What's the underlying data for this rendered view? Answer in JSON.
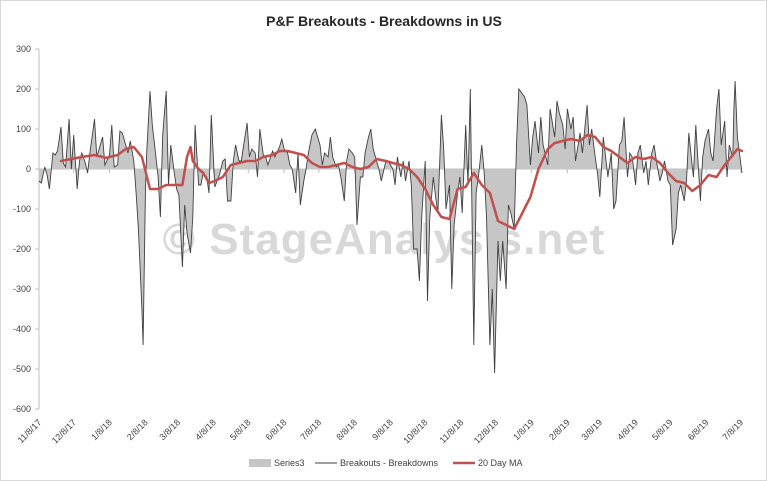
{
  "chart_data": {
    "type": "area",
    "title": "P&F Breakouts - Breakdowns in US",
    "watermark": "© StageAnalysis.net",
    "ylim": [
      -600,
      300
    ],
    "yticks": [
      300,
      200,
      100,
      0,
      -100,
      -200,
      -300,
      -400,
      -500,
      -600
    ],
    "xlim": [
      "2017-11-08",
      "2019-07-09"
    ],
    "xticks": [
      "11/8/17",
      "12/8/17",
      "1/8/18",
      "2/8/18",
      "3/8/18",
      "4/8/18",
      "5/8/18",
      "6/8/18",
      "7/8/18",
      "8/8/18",
      "9/8/18",
      "10/8/18",
      "11/8/18",
      "12/8/18",
      "1/8/19",
      "2/8/19",
      "3/8/19",
      "4/8/19",
      "5/8/19",
      "6/8/19",
      "7/8/19"
    ],
    "grid": false,
    "legend_position": "bottom",
    "series": [
      {
        "name": "Series3",
        "kind": "area",
        "color": "#c6c6c6"
      },
      {
        "name": "Breakouts - Breakdowns",
        "kind": "line",
        "color": "#404040"
      },
      {
        "name": "20 Day MA",
        "kind": "line",
        "color": "#c0504d"
      }
    ],
    "breakouts_minus_breakdowns": [
      [
        "2017-11-08",
        -30
      ],
      [
        "2017-11-10",
        -35
      ],
      [
        "2017-11-13",
        5
      ],
      [
        "2017-11-15",
        -15
      ],
      [
        "2017-11-17",
        -50
      ],
      [
        "2017-11-20",
        40
      ],
      [
        "2017-11-22",
        35
      ],
      [
        "2017-11-24",
        45
      ],
      [
        "2017-11-27",
        105
      ],
      [
        "2017-11-29",
        15
      ],
      [
        "2017-12-01",
        5
      ],
      [
        "2017-12-04",
        125
      ],
      [
        "2017-12-06",
        0
      ],
      [
        "2017-12-08",
        85
      ],
      [
        "2017-12-11",
        -50
      ],
      [
        "2017-12-13",
        20
      ],
      [
        "2017-12-15",
        40
      ],
      [
        "2017-12-18",
        15
      ],
      [
        "2017-12-20",
        -10
      ],
      [
        "2017-12-22",
        40
      ],
      [
        "2017-12-26",
        125
      ],
      [
        "2017-12-28",
        30
      ],
      [
        "2018-01-02",
        80
      ],
      [
        "2018-01-04",
        10
      ],
      [
        "2018-01-08",
        35
      ],
      [
        "2018-01-10",
        110
      ],
      [
        "2018-01-12",
        5
      ],
      [
        "2018-01-15",
        10
      ],
      [
        "2018-01-17",
        95
      ],
      [
        "2018-01-19",
        90
      ],
      [
        "2018-01-22",
        60
      ],
      [
        "2018-01-24",
        40
      ],
      [
        "2018-01-26",
        70
      ],
      [
        "2018-01-29",
        20
      ],
      [
        "2018-01-31",
        -60
      ],
      [
        "2018-02-02",
        -150
      ],
      [
        "2018-02-05",
        -350
      ],
      [
        "2018-02-06",
        -440
      ],
      [
        "2018-02-08",
        -60
      ],
      [
        "2018-02-09",
        30
      ],
      [
        "2018-02-12",
        195
      ],
      [
        "2018-02-14",
        110
      ],
      [
        "2018-02-16",
        60
      ],
      [
        "2018-02-19",
        -20
      ],
      [
        "2018-02-21",
        -120
      ],
      [
        "2018-02-23",
        85
      ],
      [
        "2018-02-26",
        195
      ],
      [
        "2018-02-28",
        -40
      ],
      [
        "2018-03-02",
        60
      ],
      [
        "2018-03-05",
        -10
      ],
      [
        "2018-03-07",
        -50
      ],
      [
        "2018-03-09",
        -65
      ],
      [
        "2018-03-12",
        -245
      ],
      [
        "2018-03-14",
        -90
      ],
      [
        "2018-03-16",
        -160
      ],
      [
        "2018-03-19",
        -210
      ],
      [
        "2018-03-21",
        -120
      ],
      [
        "2018-03-23",
        110
      ],
      [
        "2018-03-26",
        -40
      ],
      [
        "2018-03-28",
        -40
      ],
      [
        "2018-03-30",
        -10
      ],
      [
        "2018-04-02",
        -20
      ],
      [
        "2018-04-04",
        -60
      ],
      [
        "2018-04-06",
        135
      ],
      [
        "2018-04-09",
        -45
      ],
      [
        "2018-04-11",
        -30
      ],
      [
        "2018-04-13",
        -15
      ],
      [
        "2018-04-16",
        20
      ],
      [
        "2018-04-18",
        25
      ],
      [
        "2018-04-20",
        -80
      ],
      [
        "2018-04-23",
        -80
      ],
      [
        "2018-04-25",
        20
      ],
      [
        "2018-04-27",
        60
      ],
      [
        "2018-04-30",
        20
      ],
      [
        "2018-05-02",
        20
      ],
      [
        "2018-05-04",
        60
      ],
      [
        "2018-05-07",
        115
      ],
      [
        "2018-05-09",
        30
      ],
      [
        "2018-05-11",
        50
      ],
      [
        "2018-05-14",
        40
      ],
      [
        "2018-05-16",
        -20
      ],
      [
        "2018-05-18",
        100
      ],
      [
        "2018-05-21",
        35
      ],
      [
        "2018-05-23",
        30
      ],
      [
        "2018-05-25",
        10
      ],
      [
        "2018-05-29",
        45
      ],
      [
        "2018-05-31",
        30
      ],
      [
        "2018-06-04",
        55
      ],
      [
        "2018-06-06",
        75
      ],
      [
        "2018-06-08",
        50
      ],
      [
        "2018-06-11",
        40
      ],
      [
        "2018-06-13",
        10
      ],
      [
        "2018-06-15",
        0
      ],
      [
        "2018-06-18",
        -60
      ],
      [
        "2018-06-20",
        40
      ],
      [
        "2018-06-22",
        -90
      ],
      [
        "2018-06-25",
        -30
      ],
      [
        "2018-06-27",
        0
      ],
      [
        "2018-06-29",
        40
      ],
      [
        "2018-07-02",
        85
      ],
      [
        "2018-07-05",
        100
      ],
      [
        "2018-07-09",
        60
      ],
      [
        "2018-07-11",
        10
      ],
      [
        "2018-07-13",
        40
      ],
      [
        "2018-07-16",
        30
      ],
      [
        "2018-07-18",
        80
      ],
      [
        "2018-07-20",
        30
      ],
      [
        "2018-07-23",
        5
      ],
      [
        "2018-07-25",
        10
      ],
      [
        "2018-07-27",
        -20
      ],
      [
        "2018-07-30",
        -80
      ],
      [
        "2018-08-01",
        20
      ],
      [
        "2018-08-03",
        50
      ],
      [
        "2018-08-06",
        40
      ],
      [
        "2018-08-08",
        30
      ],
      [
        "2018-08-10",
        -140
      ],
      [
        "2018-08-13",
        -20
      ],
      [
        "2018-08-15",
        -20
      ],
      [
        "2018-08-17",
        40
      ],
      [
        "2018-08-20",
        80
      ],
      [
        "2018-08-22",
        100
      ],
      [
        "2018-08-24",
        50
      ],
      [
        "2018-08-27",
        20
      ],
      [
        "2018-08-29",
        0
      ],
      [
        "2018-08-31",
        -30
      ],
      [
        "2018-09-04",
        20
      ],
      [
        "2018-09-06",
        20
      ],
      [
        "2018-09-10",
        0
      ],
      [
        "2018-09-12",
        -40
      ],
      [
        "2018-09-14",
        30
      ],
      [
        "2018-09-17",
        -20
      ],
      [
        "2018-09-19",
        20
      ],
      [
        "2018-09-21",
        -30
      ],
      [
        "2018-09-24",
        20
      ],
      [
        "2018-09-26",
        -40
      ],
      [
        "2018-09-28",
        -200
      ],
      [
        "2018-10-01",
        -200
      ],
      [
        "2018-10-03",
        -280
      ],
      [
        "2018-10-05",
        -120
      ],
      [
        "2018-10-08",
        20
      ],
      [
        "2018-10-10",
        -330
      ],
      [
        "2018-10-12",
        -120
      ],
      [
        "2018-10-15",
        -20
      ],
      [
        "2018-10-17",
        -70
      ],
      [
        "2018-10-19",
        -110
      ],
      [
        "2018-10-22",
        135
      ],
      [
        "2018-10-24",
        50
      ],
      [
        "2018-10-26",
        -100
      ],
      [
        "2018-10-29",
        -40
      ],
      [
        "2018-10-31",
        -300
      ],
      [
        "2018-11-02",
        -140
      ],
      [
        "2018-11-05",
        -60
      ],
      [
        "2018-11-07",
        -20
      ],
      [
        "2018-11-09",
        -110
      ],
      [
        "2018-11-12",
        110
      ],
      [
        "2018-11-14",
        -40
      ],
      [
        "2018-11-16",
        200
      ],
      [
        "2018-11-19",
        -440
      ],
      [
        "2018-11-21",
        -60
      ],
      [
        "2018-11-23",
        -20
      ],
      [
        "2018-11-26",
        60
      ],
      [
        "2018-11-28",
        -10
      ],
      [
        "2018-11-30",
        -120
      ],
      [
        "2018-12-03",
        -440
      ],
      [
        "2018-12-05",
        -300
      ],
      [
        "2018-12-07",
        -510
      ],
      [
        "2018-12-10",
        -180
      ],
      [
        "2018-12-12",
        -280
      ],
      [
        "2018-12-14",
        -180
      ],
      [
        "2018-12-17",
        -300
      ],
      [
        "2018-12-19",
        -90
      ],
      [
        "2018-12-21",
        -110
      ],
      [
        "2018-12-24",
        -150
      ],
      [
        "2018-12-26",
        60
      ],
      [
        "2018-12-28",
        200
      ],
      [
        "2019-01-02",
        180
      ],
      [
        "2019-01-04",
        160
      ],
      [
        "2019-01-07",
        10
      ],
      [
        "2019-01-09",
        80
      ],
      [
        "2019-01-11",
        120
      ],
      [
        "2019-01-14",
        40
      ],
      [
        "2019-01-16",
        130
      ],
      [
        "2019-01-18",
        60
      ],
      [
        "2019-01-22",
        10
      ],
      [
        "2019-01-24",
        150
      ],
      [
        "2019-01-28",
        80
      ],
      [
        "2019-01-30",
        170
      ],
      [
        "2019-02-01",
        140
      ],
      [
        "2019-02-04",
        110
      ],
      [
        "2019-02-06",
        50
      ],
      [
        "2019-02-08",
        150
      ],
      [
        "2019-02-11",
        100
      ],
      [
        "2019-02-13",
        130
      ],
      [
        "2019-02-15",
        20
      ],
      [
        "2019-02-19",
        90
      ],
      [
        "2019-02-21",
        40
      ],
      [
        "2019-02-25",
        160
      ],
      [
        "2019-02-27",
        60
      ],
      [
        "2019-03-01",
        100
      ],
      [
        "2019-03-04",
        30
      ],
      [
        "2019-03-06",
        -10
      ],
      [
        "2019-03-08",
        -70
      ],
      [
        "2019-03-11",
        80
      ],
      [
        "2019-03-13",
        30
      ],
      [
        "2019-03-15",
        -20
      ],
      [
        "2019-03-18",
        40
      ],
      [
        "2019-03-20",
        -100
      ],
      [
        "2019-03-22",
        -80
      ],
      [
        "2019-03-25",
        60
      ],
      [
        "2019-03-27",
        70
      ],
      [
        "2019-03-29",
        130
      ],
      [
        "2019-04-01",
        -20
      ],
      [
        "2019-04-03",
        40
      ],
      [
        "2019-04-05",
        30
      ],
      [
        "2019-04-08",
        -40
      ],
      [
        "2019-04-10",
        40
      ],
      [
        "2019-04-12",
        60
      ],
      [
        "2019-04-15",
        -10
      ],
      [
        "2019-04-17",
        20
      ],
      [
        "2019-04-19",
        -40
      ],
      [
        "2019-04-22",
        40
      ],
      [
        "2019-04-24",
        60
      ],
      [
        "2019-04-26",
        20
      ],
      [
        "2019-04-29",
        -30
      ],
      [
        "2019-05-01",
        -10
      ],
      [
        "2019-05-03",
        20
      ],
      [
        "2019-05-06",
        -30
      ],
      [
        "2019-05-08",
        -40
      ],
      [
        "2019-05-10",
        -190
      ],
      [
        "2019-05-13",
        -150
      ],
      [
        "2019-05-15",
        -60
      ],
      [
        "2019-05-17",
        -40
      ],
      [
        "2019-05-20",
        -80
      ],
      [
        "2019-05-22",
        -30
      ],
      [
        "2019-05-24",
        90
      ],
      [
        "2019-05-28",
        -20
      ],
      [
        "2019-05-30",
        110
      ],
      [
        "2019-06-03",
        -80
      ],
      [
        "2019-06-05",
        30
      ],
      [
        "2019-06-07",
        70
      ],
      [
        "2019-06-10",
        100
      ],
      [
        "2019-06-12",
        40
      ],
      [
        "2019-06-14",
        20
      ],
      [
        "2019-06-17",
        150
      ],
      [
        "2019-06-19",
        200
      ],
      [
        "2019-06-21",
        60
      ],
      [
        "2019-06-24",
        120
      ],
      [
        "2019-06-26",
        -20
      ],
      [
        "2019-06-28",
        60
      ],
      [
        "2019-07-01",
        30
      ],
      [
        "2019-07-02",
        150
      ],
      [
        "2019-07-03",
        220
      ],
      [
        "2019-07-05",
        80
      ],
      [
        "2019-07-09",
        -10
      ]
    ],
    "ma20": [
      [
        "2017-11-27",
        20
      ],
      [
        "2017-12-06",
        25
      ],
      [
        "2017-12-15",
        30
      ],
      [
        "2017-12-26",
        35
      ],
      [
        "2018-01-05",
        28
      ],
      [
        "2018-01-15",
        35
      ],
      [
        "2018-01-22",
        50
      ],
      [
        "2018-01-29",
        55
      ],
      [
        "2018-02-05",
        30
      ],
      [
        "2018-02-12",
        -50
      ],
      [
        "2018-02-19",
        -50
      ],
      [
        "2018-02-26",
        -40
      ],
      [
        "2018-03-05",
        -40
      ],
      [
        "2018-03-12",
        -40
      ],
      [
        "2018-03-16",
        30
      ],
      [
        "2018-03-19",
        55
      ],
      [
        "2018-03-21",
        20
      ],
      [
        "2018-03-26",
        0
      ],
      [
        "2018-03-30",
        -10
      ],
      [
        "2018-04-04",
        -35
      ],
      [
        "2018-04-09",
        -30
      ],
      [
        "2018-04-16",
        -20
      ],
      [
        "2018-04-23",
        10
      ],
      [
        "2018-04-30",
        15
      ],
      [
        "2018-05-07",
        20
      ],
      [
        "2018-05-14",
        20
      ],
      [
        "2018-05-21",
        30
      ],
      [
        "2018-05-29",
        35
      ],
      [
        "2018-06-04",
        45
      ],
      [
        "2018-06-11",
        45
      ],
      [
        "2018-06-18",
        40
      ],
      [
        "2018-06-25",
        35
      ],
      [
        "2018-07-02",
        15
      ],
      [
        "2018-07-09",
        5
      ],
      [
        "2018-07-16",
        5
      ],
      [
        "2018-07-23",
        10
      ],
      [
        "2018-07-30",
        15
      ],
      [
        "2018-08-06",
        5
      ],
      [
        "2018-08-13",
        0
      ],
      [
        "2018-08-20",
        5
      ],
      [
        "2018-08-27",
        25
      ],
      [
        "2018-09-04",
        20
      ],
      [
        "2018-09-10",
        15
      ],
      [
        "2018-09-17",
        10
      ],
      [
        "2018-09-24",
        0
      ],
      [
        "2018-10-01",
        -20
      ],
      [
        "2018-10-08",
        -50
      ],
      [
        "2018-10-15",
        -90
      ],
      [
        "2018-10-22",
        -120
      ],
      [
        "2018-10-29",
        -125
      ],
      [
        "2018-11-05",
        -50
      ],
      [
        "2018-11-12",
        -45
      ],
      [
        "2018-11-19",
        -10
      ],
      [
        "2018-11-26",
        -40
      ],
      [
        "2018-12-03",
        -60
      ],
      [
        "2018-12-10",
        -130
      ],
      [
        "2018-12-17",
        -140
      ],
      [
        "2018-12-24",
        -150
      ],
      [
        "2018-12-31",
        -110
      ],
      [
        "2019-01-07",
        -70
      ],
      [
        "2019-01-14",
        0
      ],
      [
        "2019-01-22",
        50
      ],
      [
        "2019-01-28",
        65
      ],
      [
        "2019-02-04",
        70
      ],
      [
        "2019-02-11",
        75
      ],
      [
        "2019-02-19",
        70
      ],
      [
        "2019-02-25",
        85
      ],
      [
        "2019-03-04",
        80
      ],
      [
        "2019-03-11",
        55
      ],
      [
        "2019-03-18",
        45
      ],
      [
        "2019-03-25",
        30
      ],
      [
        "2019-04-01",
        15
      ],
      [
        "2019-04-08",
        30
      ],
      [
        "2019-04-15",
        25
      ],
      [
        "2019-04-22",
        30
      ],
      [
        "2019-04-29",
        15
      ],
      [
        "2019-05-06",
        -10
      ],
      [
        "2019-05-13",
        -30
      ],
      [
        "2019-05-20",
        -35
      ],
      [
        "2019-05-27",
        -55
      ],
      [
        "2019-06-03",
        -40
      ],
      [
        "2019-06-10",
        -15
      ],
      [
        "2019-06-17",
        -20
      ],
      [
        "2019-06-24",
        10
      ],
      [
        "2019-07-01",
        35
      ],
      [
        "2019-07-05",
        50
      ],
      [
        "2019-07-09",
        45
      ]
    ]
  }
}
